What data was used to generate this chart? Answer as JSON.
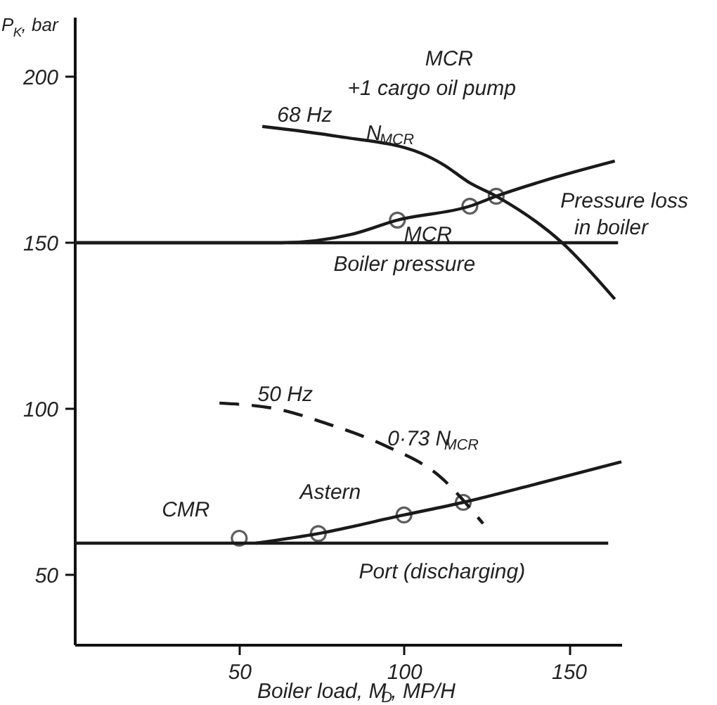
{
  "chart_data": {
    "type": "line",
    "xlabel": "Boiler load, M$_{D}$, MP/H",
    "ylabel": "P$_{K}$, bar",
    "xlim": [
      0,
      166
    ],
    "ylim": [
      29,
      218
    ],
    "xticks": [
      50,
      100,
      150
    ],
    "yticks": [
      50,
      100,
      150,
      200
    ],
    "line_style": "solid",
    "series": [
      {
        "color": "#1a1a1a",
        "x": [
          0,
          165
        ],
        "values": [
          150,
          150
        ]
      },
      {
        "color": "#1a1a1a",
        "x": [
          0,
          63,
          84,
          98,
          120,
          128,
          146,
          164
        ],
        "values": [
          150,
          150,
          152.5,
          156.8,
          161,
          164,
          169.7,
          174.6
        ]
      },
      {
        "color": "#1a1a1a",
        "x": [
          57,
          80,
          105,
          112,
          120,
          128,
          148,
          164
        ],
        "values": [
          185,
          182,
          177,
          173.5,
          168,
          164,
          150,
          133
        ]
      },
      {
        "color": "#1a1a1a",
        "x": [
          0,
          162
        ],
        "values": [
          59.5,
          59.5
        ]
      },
      {
        "color": "#1a1a1a",
        "x": [
          55,
          74,
          100,
          118,
          140,
          166
        ],
        "values": [
          59.5,
          62.4,
          68,
          71.8,
          77.3,
          84
        ]
      },
      {
        "color": "#1a1a1a",
        "line_style": "dashed",
        "x": [
          44,
          63,
          76,
          94,
          111,
          124
        ],
        "values": [
          101.7,
          99.6,
          95.7,
          89,
          79.5,
          65.4
        ]
      },
      {
        "type": "scatter",
        "color": "#1a1a1a",
        "marker": "circle",
        "x": [
          98,
          120,
          128,
          50,
          74,
          100,
          118
        ],
        "values": [
          156.8,
          161,
          164,
          61,
          62.4,
          68,
          71.8
        ]
      }
    ],
    "annotations": [
      "MCR",
      "+1 cargo oil pump",
      "68 Hz",
      "N$_{MCR}$",
      "MCR",
      "Boiler pressure",
      "Pressure loss",
      "in boiler",
      "50 Hz",
      "0·73 N$_{MCR}$",
      "Astern",
      "CMR",
      "Port (discharging)"
    ]
  }
}
